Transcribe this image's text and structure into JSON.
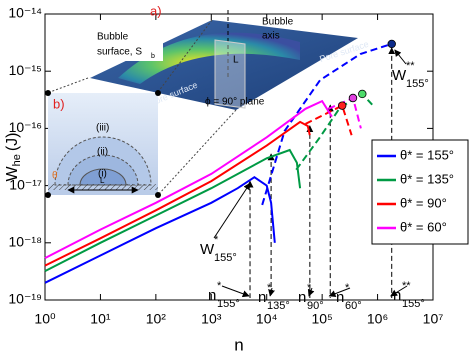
{
  "chart_data": {
    "type": "line",
    "xlabel": "n",
    "ylabel": "W",
    "ylabel_sub": "he",
    "ylabel_unit": "(J)",
    "xscale": "log",
    "yscale": "log",
    "xlim": [
      1,
      10000000
    ],
    "ylim": [
      1e-19,
      1e-14
    ],
    "xticks": [
      {
        "value": 1,
        "label": "10⁰"
      },
      {
        "value": 10,
        "label": "10¹"
      },
      {
        "value": 100,
        "label": "10²"
      },
      {
        "value": 1000,
        "label": "10³"
      },
      {
        "value": 10000,
        "label": "10⁴"
      },
      {
        "value": 100000,
        "label": "10⁵"
      },
      {
        "value": 1000000,
        "label": "10⁶"
      },
      {
        "value": 10000000,
        "label": "10⁷"
      }
    ],
    "yticks": [
      {
        "value": 1e-19,
        "label": "10⁻¹⁹"
      },
      {
        "value": 1e-18,
        "label": "10⁻¹⁸"
      },
      {
        "value": 1e-17,
        "label": "10⁻¹⁷"
      },
      {
        "value": 1e-16,
        "label": "10⁻¹⁶"
      },
      {
        "value": 1e-15,
        "label": "10⁻¹⁵"
      },
      {
        "value": 1e-14,
        "label": "10⁻¹⁴"
      }
    ],
    "legend": "right",
    "series": [
      {
        "name": "θ* = 155°",
        "color": "#0000ff",
        "marker_color": "#0b2a8a",
        "x": [
          1,
          10,
          100,
          1000,
          3000,
          6000,
          10000,
          12000,
          14000
        ],
        "values": [
          2e-19,
          6e-19,
          1.8e-18,
          5e-18,
          9e-18,
          1.4e-17,
          1e-17,
          5e-18,
          1e-18
        ],
        "branch_x": [
          8300,
          21000,
          92000,
          490000,
          1800000
        ],
        "branch_values": [
          4.6e-18,
          9e-17,
          7e-16,
          2e-15,
          3e-15
        ],
        "peak": {
          "x": 1800000,
          "value": 3e-15
        }
      },
      {
        "name": "θ* = 135°",
        "color": "#009a44",
        "marker_color": "#4ddc6b",
        "x": [
          1,
          10,
          100,
          1000,
          10000,
          26000,
          35000,
          40000
        ],
        "values": [
          3.2e-19,
          1e-18,
          3e-18,
          9e-18,
          3e-17,
          4.2e-17,
          2.5e-17,
          9e-18
        ],
        "branch_x": [
          34000,
          91000,
          210000,
          530000,
          800000
        ],
        "branch_values": [
          1.9e-17,
          7e-17,
          2.3e-16,
          4e-16,
          2.6e-16
        ],
        "peak": {
          "x": 530000,
          "value": 4e-16
        }
      },
      {
        "name": "θ* = 90°",
        "color": "#ff0000",
        "marker_color": "#ff2020",
        "x": [
          1,
          10,
          100,
          1000,
          10000,
          40000,
          55000,
          60000
        ],
        "values": [
          4e-19,
          1.2e-18,
          3.7e-18,
          1.2e-17,
          5e-17,
          1.3e-16,
          1.1e-16,
          7.6e-17
        ],
        "branch_x": [
          50000,
          230000,
          340000
        ],
        "branch_values": [
          1.2e-16,
          2.5e-16,
          7.6e-17
        ],
        "peak": {
          "x": 230000,
          "value": 2.5e-16
        }
      },
      {
        "name": "θ* = 60°",
        "color": "#ff00ff",
        "marker_color": "#e040e0",
        "x": [
          1,
          10,
          100,
          1000,
          10000,
          50000,
          100000,
          150000
        ],
        "values": [
          5.4e-19,
          1.7e-18,
          5e-18,
          1.6e-17,
          7e-17,
          2.2e-16,
          3e-16,
          1.6e-16
        ],
        "branch_x": [
          130000,
          360000,
          500000
        ],
        "branch_values": [
          2.2e-16,
          3.4e-16,
          1e-16
        ],
        "peak": {
          "x": 360000,
          "value": 3.4e-16
        }
      }
    ],
    "annotations": [
      {
        "base": "W",
        "sup": "*",
        "sub": "155°",
        "x": 5000,
        "y": 1.4e-17
      },
      {
        "base": "W",
        "sup": "**",
        "sub": "155°",
        "x": 1800000,
        "y": 3e-15
      },
      {
        "base": "n",
        "sup": "*",
        "sub": "155°",
        "x": 5000,
        "y": 1.4e-17
      },
      {
        "base": "n",
        "sup": "*",
        "sub": "135°",
        "x": 12000,
        "y": 4.2e-17
      },
      {
        "base": "n",
        "sup": "*",
        "sub": "90°",
        "x": 60000,
        "y": 1.3e-16
      },
      {
        "base": "n",
        "sup": "*",
        "sub": "60°",
        "x": 140000,
        "y": 3e-16
      },
      {
        "base": "n",
        "sup": "**",
        "sub": "155°",
        "x": 1800000,
        "y": 3e-15
      }
    ]
  },
  "inset": {
    "a_label": "a)",
    "bubble_1": "Bubble",
    "surface": "surface, S",
    "surface_sub": "b",
    "axis_1": "Bubble",
    "axis_2": "axis",
    "pore_1": "Pore surface",
    "pore_2": "Pore surface",
    "L_a": "L",
    "plane": "ϕ = 90° plane",
    "b_label": "b)",
    "iii": "(iii)",
    "ii": "(ii)",
    "i": "(i)",
    "theta": "θ",
    "L_b": "L"
  }
}
